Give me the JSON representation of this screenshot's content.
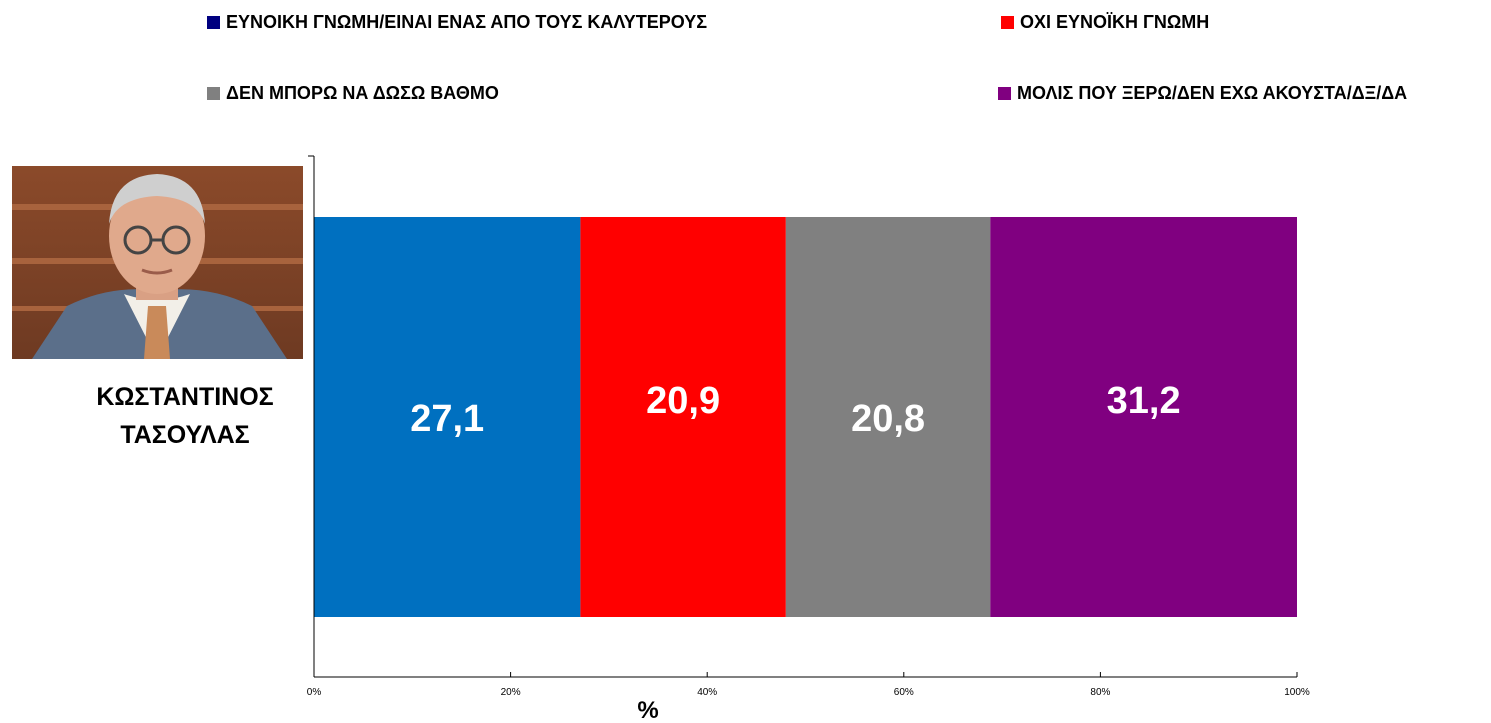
{
  "chart_data": {
    "type": "bar",
    "orientation": "horizontal",
    "stacked": true,
    "categories": [
      "ΚΩΣΤΑΝΤΙΝΟΣ ΤΑΣΟΥΛΑΣ"
    ],
    "person_name_lines": [
      "ΚΩΣΤΑΝΤΙΝΟΣ",
      "ΤΑΣΟΥΛΑΣ"
    ],
    "series": [
      {
        "name": "ΕΥΝΟΙΚΗ ΓΝΩΜΗ/ΕΙΝΑΙ ΕΝΑΣ ΑΠΟ ΤΟΥΣ ΚΑΛΥΤΕΡΟΥΣ",
        "values": [
          27.1
        ],
        "label": "27,1",
        "color": "#0070c0",
        "legend_color": "#000080"
      },
      {
        "name": "ΟΧΙ ΕΥΝΟΪΚΗ ΓΝΩΜΗ",
        "values": [
          20.9
        ],
        "label": "20,9",
        "color": "#ff0000",
        "legend_color": "#ff0000"
      },
      {
        "name": "ΔΕΝ ΜΠΟΡΩ ΝΑ ΔΩΣΩ ΒΑΘΜΟ",
        "values": [
          20.8
        ],
        "label": "20,8",
        "color": "#808080",
        "legend_color": "#808080"
      },
      {
        "name": "ΜΟΛΙΣ ΠΟΥ ΞΕΡΩ/ΔΕΝ ΕΧΩ ΑΚΟΥΣΤΑ/ΔΞ/ΔΑ",
        "values": [
          31.2
        ],
        "label": "31,2",
        "color": "#800080",
        "legend_color": "#800080"
      }
    ],
    "xlim": [
      0,
      100
    ],
    "x_ticks": [
      "0%",
      "20%",
      "40%",
      "60%",
      "80%",
      "100%"
    ],
    "xlabel": "%",
    "legend_position": "top",
    "grid": false
  }
}
